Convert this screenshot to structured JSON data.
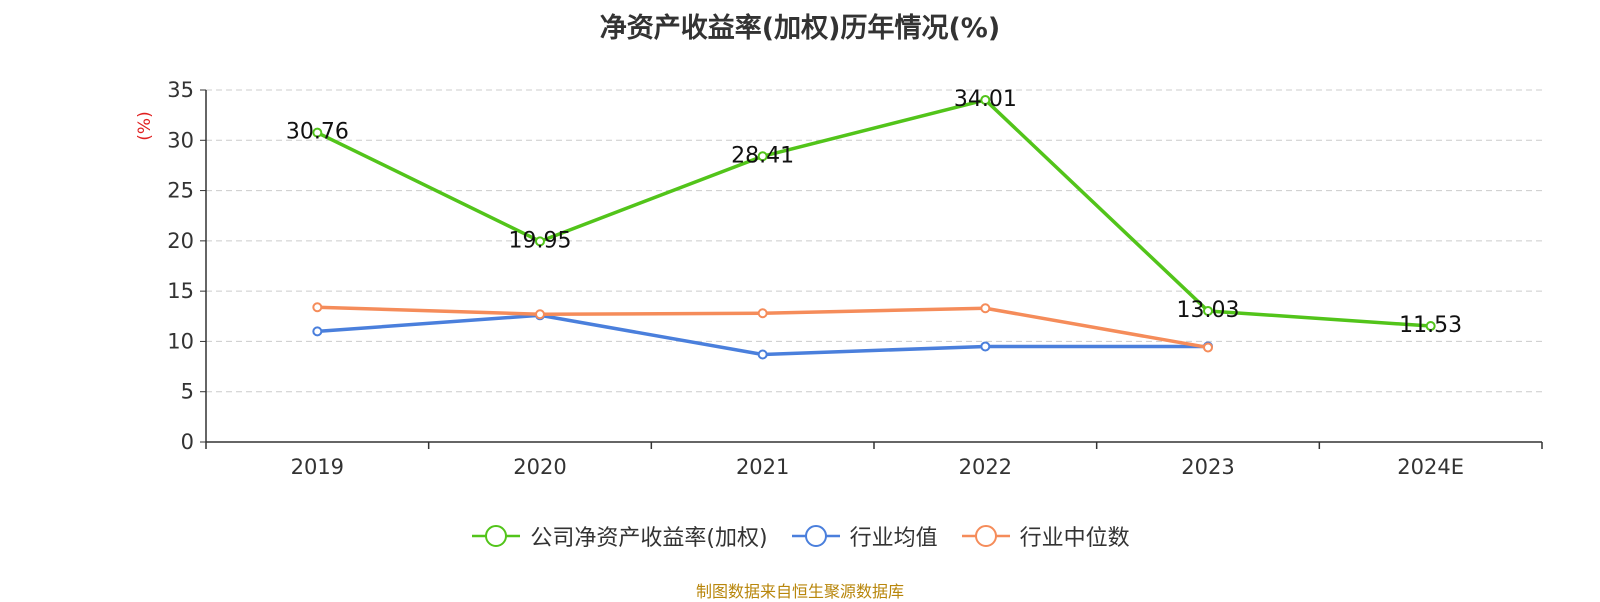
{
  "chart_data": {
    "type": "line",
    "title": "净资产收益率(加权)历年情况(%)",
    "ylabel": "(%)",
    "categories": [
      "2019",
      "2020",
      "2021",
      "2022",
      "2023",
      "2024E"
    ],
    "yticks": [
      "0",
      "5",
      "10",
      "15",
      "20",
      "25",
      "30",
      "35"
    ],
    "ylim": [
      0,
      35
    ],
    "grid": true,
    "legend_position": "bottom",
    "series": [
      {
        "name": "公司净资产收益率(加权)",
        "color": "#52c41a",
        "values": [
          30.76,
          19.95,
          28.41,
          34.01,
          13.03,
          11.53
        ],
        "labels": [
          "30.76",
          "19.95",
          "28.41",
          "34.01",
          "13.03",
          "11.53"
        ]
      },
      {
        "name": "行业均值",
        "color": "#4a7fdc",
        "values": [
          11.0,
          12.6,
          8.7,
          9.5,
          9.5,
          null
        ]
      },
      {
        "name": "行业中位数",
        "color": "#f58c5a",
        "values": [
          13.4,
          12.7,
          12.8,
          13.3,
          9.4,
          null
        ]
      }
    ]
  },
  "source_note": "制图数据来自恒生聚源数据库"
}
